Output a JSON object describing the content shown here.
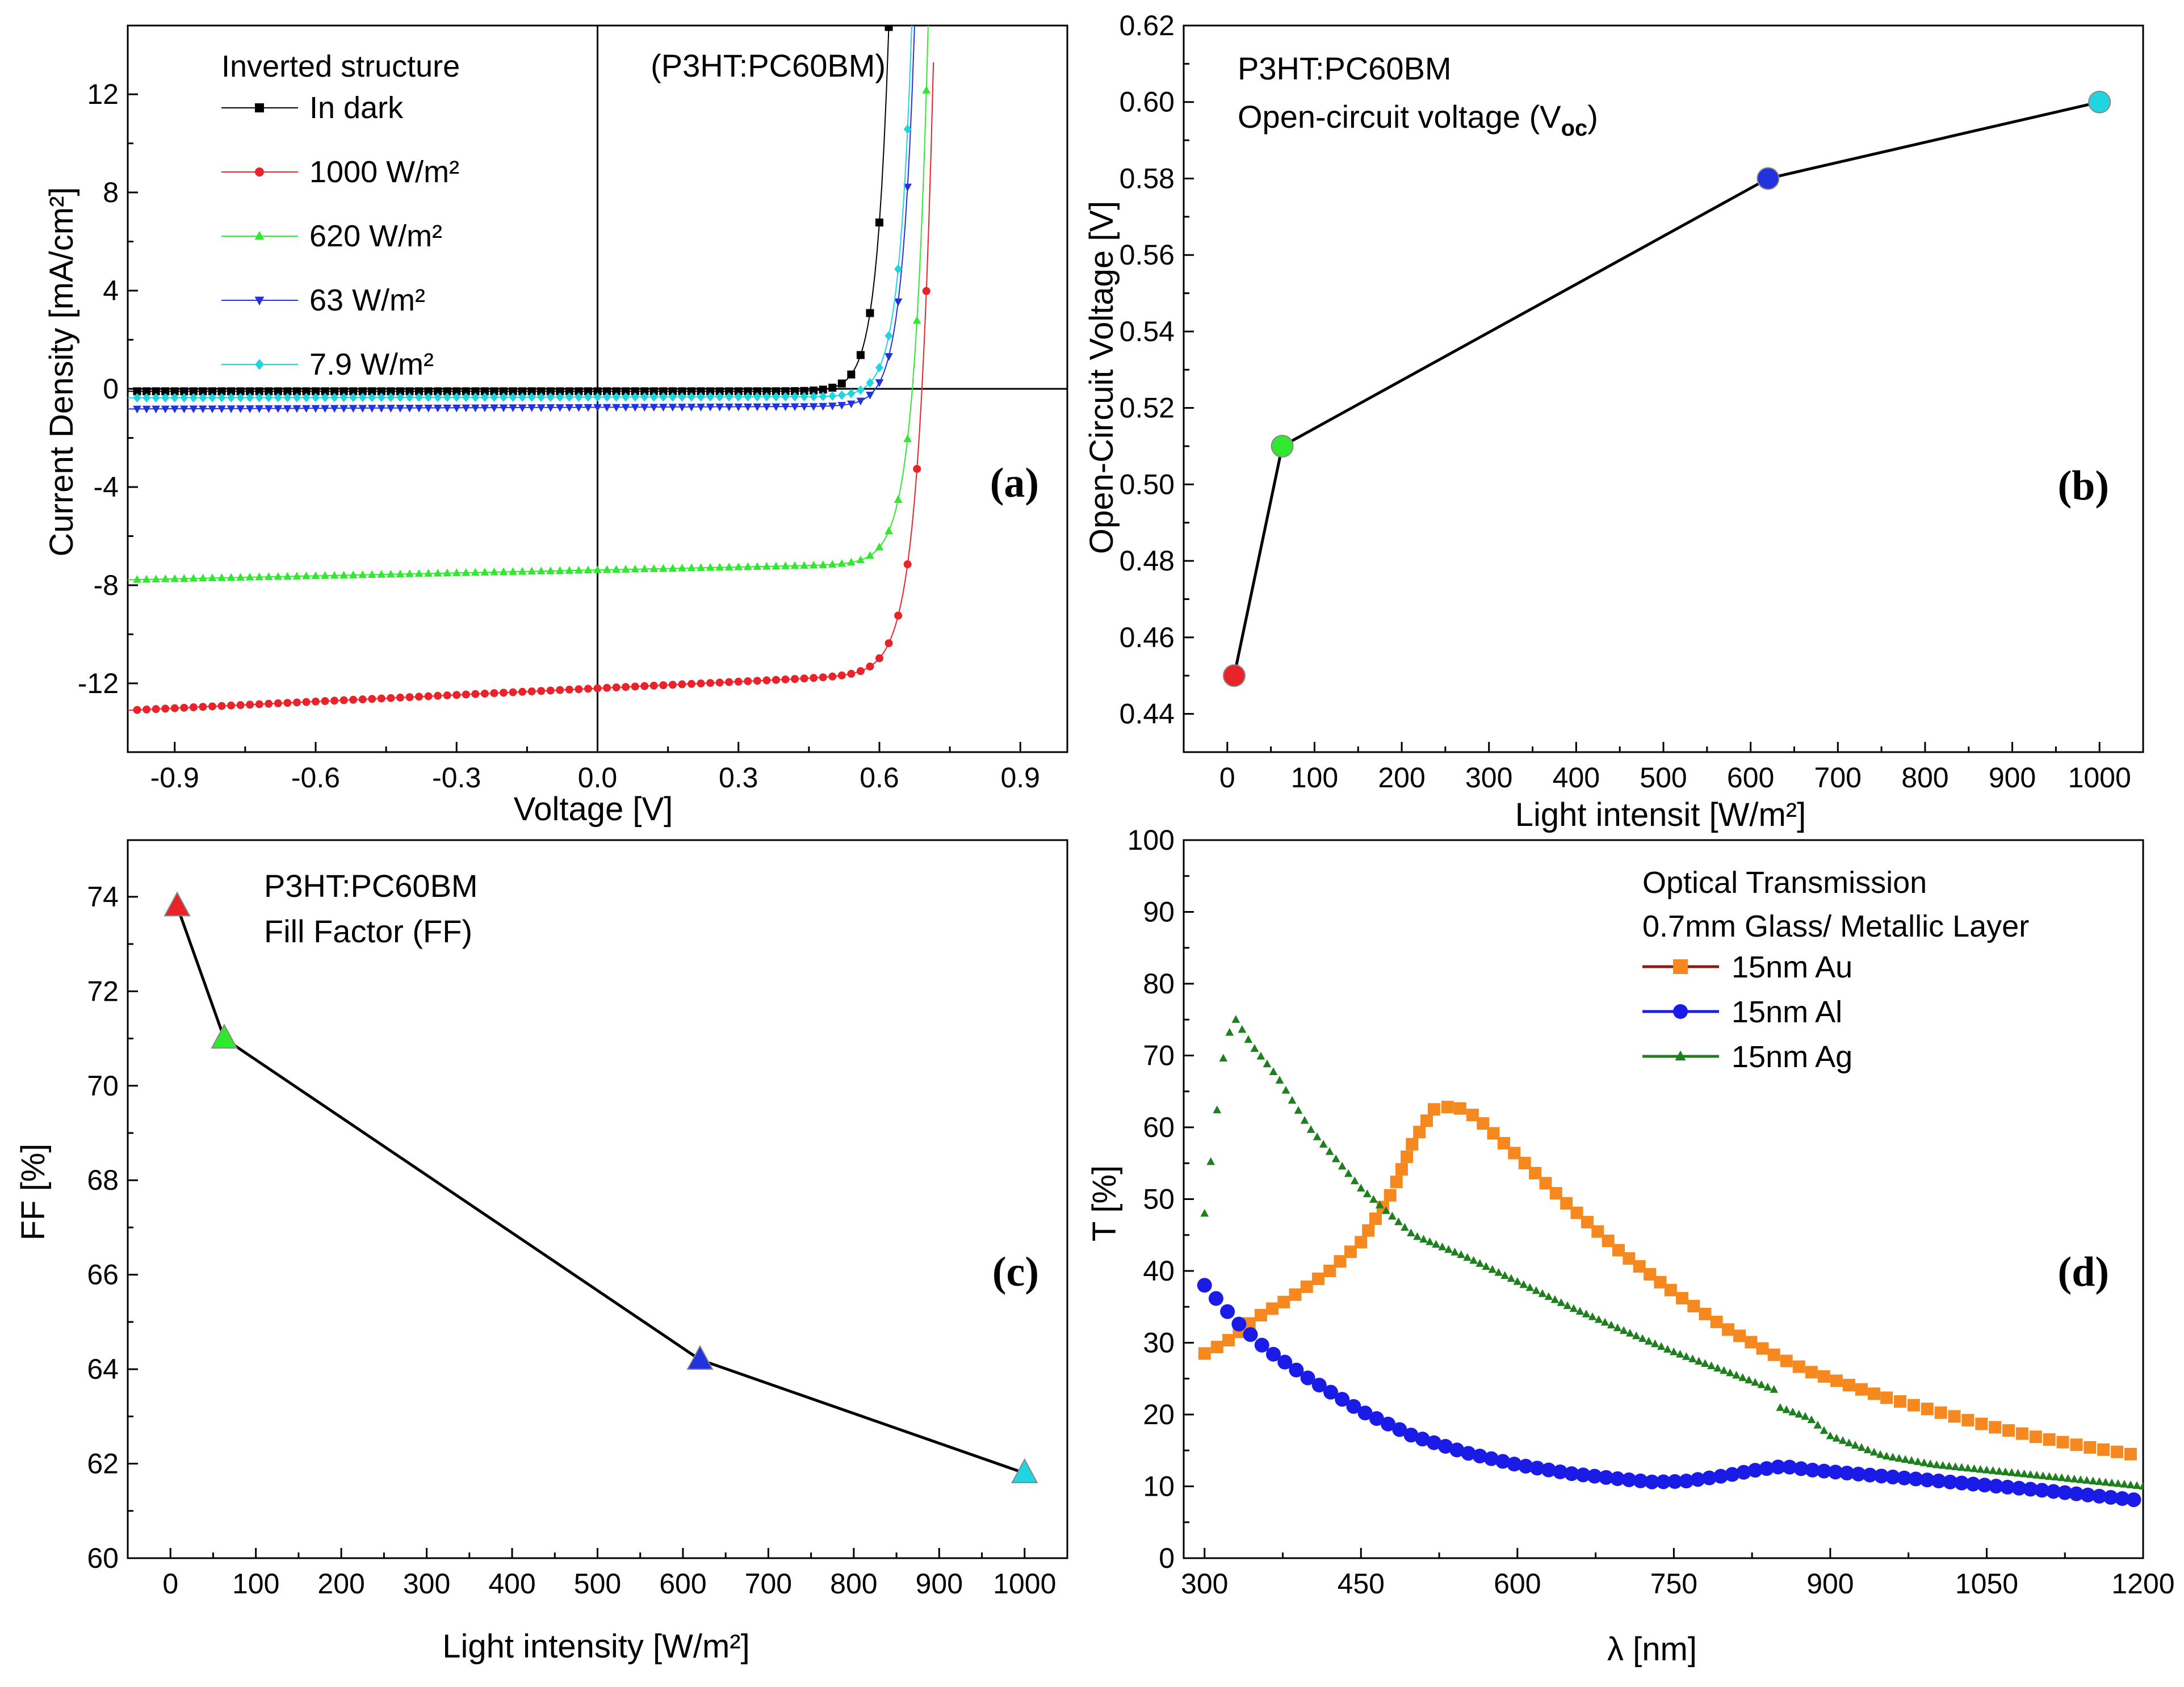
{
  "chart_data": [
    {
      "id": "a",
      "type": "line",
      "panel_label": "(a)",
      "title": "(P3HT:PC60BM)",
      "legend_title": "Inverted structure",
      "xlabel": "Voltage [V]",
      "ylabel": "Current Density [mA/cm²]",
      "xlim": [
        -1.0,
        1.0
      ],
      "ylim": [
        -14.8,
        14.8
      ],
      "xticks": [
        -0.9,
        -0.6,
        -0.3,
        0.0,
        0.3,
        0.6,
        0.9
      ],
      "xtick_labels": [
        "-0.9",
        "-0.6",
        "-0.3",
        "0.0",
        "0.3",
        "0.6",
        "0.9"
      ],
      "yticks": [
        -12,
        -8,
        -4,
        0,
        4,
        8,
        12
      ],
      "ytick_labels": [
        "-12",
        "-8",
        "-4",
        "0",
        "4",
        "8",
        "12"
      ],
      "legend_position": "top-left",
      "series": [
        {
          "name": "In dark",
          "color": "#000000",
          "marker": "square",
          "jsc": 0.0,
          "voc": 0.49,
          "curve_a": 0.1,
          "curve_s": 0.026,
          "slope": 0.0
        },
        {
          "name": "1000 W/m²",
          "color": "#e8232a",
          "marker": "circle",
          "jsc": 11.7,
          "voc": 0.59,
          "curve_a": 0.5,
          "curve_s": 0.032,
          "slope": 0.9
        },
        {
          "name": "620 W/m²",
          "color": "#2fe82f",
          "marker": "triangle-up",
          "jsc": 7.05,
          "voc": 0.578,
          "curve_a": 0.33,
          "curve_s": 0.03,
          "slope": 0.4
        },
        {
          "name": "63 W/m²",
          "color": "#2233dd",
          "marker": "triangle-down",
          "jsc": 0.7,
          "voc": 0.52,
          "curve_a": 0.05,
          "curve_s": 0.027,
          "slope": 0.07
        },
        {
          "name": "7.9 W/m²",
          "color": "#1fd6e0",
          "marker": "diamond",
          "jsc": 0.3,
          "voc": 0.505,
          "curve_a": 0.035,
          "curve_s": 0.027,
          "slope": 0.03
        }
      ]
    },
    {
      "id": "b",
      "type": "line",
      "panel_label": "(b)",
      "title": "P3HT:PC60BM",
      "subtitle_main": "Open-circuit voltage (V",
      "subtitle_sub": "oc",
      "subtitle_end": ")",
      "xlabel": "Light intensit [W/m²]",
      "ylabel": "Open-Circuit Voltage [V]",
      "xlim": [
        -50,
        1050
      ],
      "ylim": [
        0.43,
        0.62
      ],
      "xticks": [
        0,
        100,
        200,
        300,
        400,
        500,
        600,
        700,
        800,
        900,
        1000
      ],
      "xtick_labels": [
        "0",
        "100",
        "200",
        "300",
        "400",
        "500",
        "600",
        "700",
        "800",
        "900",
        "1000"
      ],
      "yticks": [
        0.44,
        0.46,
        0.48,
        0.5,
        0.52,
        0.54,
        0.56,
        0.58,
        0.6,
        0.62
      ],
      "ytick_labels": [
        "0.44",
        "0.46",
        "0.48",
        "0.50",
        "0.52",
        "0.54",
        "0.56",
        "0.58",
        "0.60",
        "0.62"
      ],
      "x": [
        7.9,
        63,
        620,
        1000
      ],
      "values": [
        0.45,
        0.51,
        0.58,
        0.6
      ],
      "point_colors": [
        "#e8232a",
        "#2fe82f",
        "#2233dd",
        "#1fd6e0"
      ]
    },
    {
      "id": "c",
      "type": "line",
      "panel_label": "(c)",
      "title": "P3HT:PC60BM",
      "subtitle": "Fill Factor (FF)",
      "xlabel": "Light intensity [W/m²]",
      "ylabel": "FF [%]",
      "xlim": [
        -50,
        1050
      ],
      "ylim": [
        60,
        75.2
      ],
      "xticks": [
        0,
        100,
        200,
        300,
        400,
        500,
        600,
        700,
        800,
        900,
        1000
      ],
      "xtick_labels": [
        "0",
        "100",
        "200",
        "300",
        "400",
        "500",
        "600",
        "700",
        "800",
        "900",
        "1000"
      ],
      "yticks": [
        60,
        62,
        64,
        66,
        68,
        70,
        72,
        74
      ],
      "ytick_labels": [
        "60",
        "62",
        "64",
        "66",
        "68",
        "70",
        "72",
        "74"
      ],
      "x": [
        7.9,
        63,
        620,
        1000
      ],
      "values": [
        73.8,
        71.0,
        64.2,
        61.8
      ],
      "point_colors": [
        "#e8232a",
        "#2fe82f",
        "#2233dd",
        "#1fd6e0"
      ]
    },
    {
      "id": "d",
      "type": "scatter",
      "panel_label": "(d)",
      "legend_title": "Optical Transmission",
      "legend_subtitle": "0.7mm Glass/ Metallic Layer",
      "xlabel": "λ [nm]",
      "ylabel": "T [%]",
      "xlim": [
        280,
        1200
      ],
      "ylim": [
        0,
        100
      ],
      "xticks": [
        300,
        450,
        600,
        750,
        900,
        1050,
        1200
      ],
      "xtick_labels": [
        "300",
        "450",
        "600",
        "750",
        "900",
        "1050",
        "1200"
      ],
      "yticks": [
        0,
        10,
        20,
        30,
        40,
        50,
        60,
        70,
        80,
        90,
        100
      ],
      "ytick_labels": [
        "0",
        "10",
        "20",
        "30",
        "40",
        "50",
        "60",
        "70",
        "80",
        "90",
        "100"
      ],
      "legend_position": "top-right",
      "series": [
        {
          "name": "15nm Au",
          "color": "#f5891f",
          "line_color": "#8b1a1a",
          "marker": "square",
          "x": [
            300,
            320,
            350,
            380,
            420,
            450,
            480,
            500,
            520,
            540,
            560,
            600,
            650,
            700,
            750,
            800,
            850,
            880,
            900,
            950,
            1000,
            1050,
            1100,
            1150,
            1200
          ],
          "values": [
            28.5,
            30,
            33.5,
            36,
            40,
            44,
            51,
            58,
            62.5,
            63,
            61.5,
            56,
            49,
            42.5,
            37,
            32,
            28,
            26,
            25,
            22.5,
            20.5,
            18.5,
            16.8,
            15.4,
            14.2
          ]
        },
        {
          "name": "15nm Al",
          "color": "#1b1be8",
          "line_color": "#1b1be8",
          "marker": "circle",
          "x": [
            300,
            330,
            360,
            400,
            450,
            500,
            550,
            600,
            650,
            700,
            730,
            760,
            800,
            830,
            855,
            880,
            920,
            1000,
            1100,
            1200
          ],
          "values": [
            38,
            33,
            29,
            25,
            20.5,
            17,
            14.7,
            13,
            11.8,
            11,
            10.6,
            10.7,
            11.5,
            12.3,
            12.8,
            12.3,
            11.8,
            10.8,
            9.5,
            8
          ],
          "spacing": 11
        },
        {
          "name": "15nm Ag",
          "color": "#1e7f1e",
          "line_color": "#1e7f1e",
          "marker": "triangle-up",
          "x": [
            300,
            310,
            320,
            330,
            345,
            370,
            400,
            450,
            500,
            550,
            600,
            650,
            700,
            750,
            800,
            849,
            851,
            880,
            900,
            950,
            1000,
            1100,
            1200
          ],
          "values": [
            48,
            60,
            72,
            75,
            71.5,
            67,
            60,
            51.5,
            45,
            42,
            38.5,
            35,
            31.8,
            28.7,
            26,
            23.3,
            21,
            19.5,
            17,
            14.3,
            13,
            11.5,
            10
          ],
          "spacing": 6
        }
      ]
    }
  ]
}
